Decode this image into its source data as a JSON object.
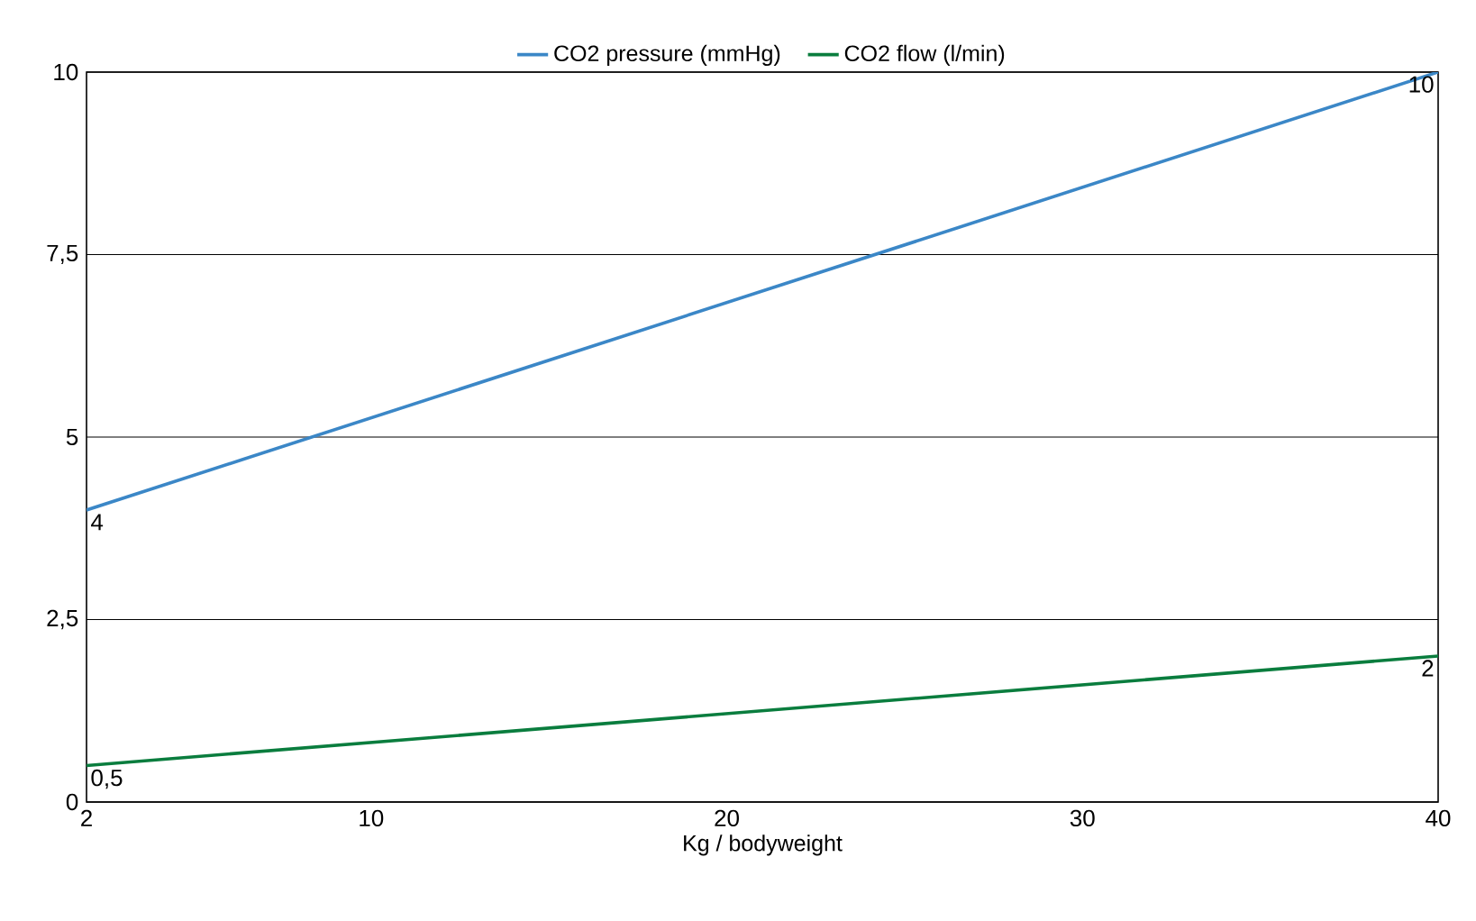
{
  "chart_data": {
    "type": "line",
    "xlabel": "Kg / bodyweight",
    "x": [
      2,
      40
    ],
    "series": [
      {
        "name": "CO2 pressure (mmHg)",
        "color": "#3b87c7",
        "values": [
          4,
          10
        ],
        "value_labels": [
          "4",
          "10"
        ]
      },
      {
        "name": "CO2 flow (l/min)",
        "color": "#0a7d3e",
        "values": [
          0.5,
          2
        ],
        "value_labels": [
          "0,5",
          "2"
        ]
      }
    ],
    "xlim": [
      2,
      40
    ],
    "xticks": [
      2,
      10,
      20,
      30,
      40
    ],
    "ylim": [
      0,
      10
    ],
    "yticks": [
      0,
      {
        "value": 2.5,
        "label": "2,5"
      },
      5,
      {
        "value": 7.5,
        "label": "7,5"
      },
      10
    ],
    "grid": "y",
    "legend": "top"
  }
}
